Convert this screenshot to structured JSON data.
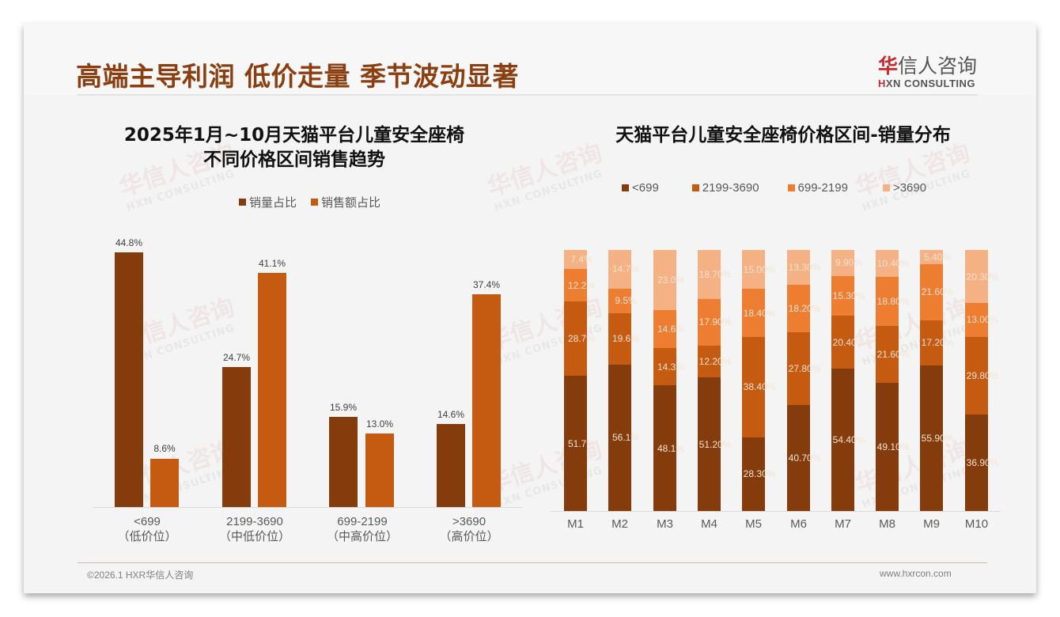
{
  "header": {
    "title": "高端主导利润 低价走量 季节波动显著",
    "logo_cn_first": "华",
    "logo_cn_rest": "信人咨询",
    "logo_en_first": "H",
    "logo_en_rest": "XN CONSULTING"
  },
  "left_chart": {
    "title_line1": "2025年1月~10月天猫平台儿童安全座椅",
    "title_line2": "不同价格区间销售趋势",
    "legend": [
      {
        "label": "销量占比",
        "color": "#843c0c"
      },
      {
        "label": "销售额占比",
        "color": "#c55a11"
      }
    ],
    "groups": [
      {
        "label": "<699",
        "sub": "（低价位）",
        "volume": "44.8%",
        "sales": "8.6%"
      },
      {
        "label": "2199-3690",
        "sub": "（中低价位）",
        "volume": "24.7%",
        "sales": "41.1%"
      },
      {
        "label": "699-2199",
        "sub": "（中高价位）",
        "volume": "15.9%",
        "sales": "13.0%"
      },
      {
        "label": ">3690",
        "sub": "（高价位）",
        "volume": "14.6%",
        "sales": "37.4%"
      }
    ]
  },
  "right_chart": {
    "title": "天猫平台儿童安全座椅价格区间-销量分布",
    "legend": [
      {
        "label": "<699",
        "color": "#843c0c"
      },
      {
        "label": "2199-3690",
        "color": "#c55a11"
      },
      {
        "label": "699-2199",
        "color": "#ed7d31"
      },
      {
        "label": ">3690",
        "color": "#f4b183"
      }
    ],
    "months": [
      {
        "label": "M1",
        "vals": [
          "51.7%",
          "28.7%",
          "12.2%",
          "7.4%"
        ]
      },
      {
        "label": "M2",
        "vals": [
          "56.1%",
          "19.6%",
          "9.5%",
          "14.7%"
        ]
      },
      {
        "label": "M3",
        "vals": [
          "48.1%",
          "14.3%",
          "14.6%",
          "23.0%"
        ]
      },
      {
        "label": "M4",
        "vals": [
          "51.20%",
          "12.20%",
          "17.90%",
          "18.70%"
        ]
      },
      {
        "label": "M5",
        "vals": [
          "28.30%",
          "38.40%",
          "18.40%",
          "15.00%"
        ]
      },
      {
        "label": "M6",
        "vals": [
          "40.70%",
          "27.80%",
          "18.20%",
          "13.30%"
        ]
      },
      {
        "label": "M7",
        "vals": [
          "54.40%",
          "20.40%",
          "15.30%",
          "9.90%"
        ]
      },
      {
        "label": "M8",
        "vals": [
          "49.10%",
          "21.60%",
          "18.80%",
          "10.40%"
        ]
      },
      {
        "label": "M9",
        "vals": [
          "55.90%",
          "17.20%",
          "21.60%",
          "5.40%"
        ]
      },
      {
        "label": "M10",
        "vals": [
          "36.90%",
          "29.80%",
          "13.00%",
          "20.30%"
        ]
      }
    ]
  },
  "footer": {
    "left": "©2026.1 HXR华信人咨询",
    "right": "www.hxrcon.com"
  },
  "chart_data": [
    {
      "type": "bar",
      "title": "2025年1月~10月天猫平台儿童安全座椅不同价格区间销售趋势",
      "categories": [
        "<699（低价位）",
        "2199-3690（中低价位）",
        "699-2199（中高价位）",
        ">3690（高价位）"
      ],
      "series": [
        {
          "name": "销量占比",
          "values": [
            44.8,
            24.7,
            15.9,
            14.6
          ]
        },
        {
          "name": "销售额占比",
          "values": [
            8.6,
            41.1,
            13.0,
            37.4
          ]
        }
      ],
      "xlabel": "",
      "ylabel": "",
      "unit": "%",
      "ylim": [
        0,
        50
      ],
      "legend_position": "top",
      "grid": false
    },
    {
      "type": "bar",
      "stacked": true,
      "percent": true,
      "title": "天猫平台儿童安全座椅价格区间-销量分布",
      "categories": [
        "M1",
        "M2",
        "M3",
        "M4",
        "M5",
        "M6",
        "M7",
        "M8",
        "M9",
        "M10"
      ],
      "series": [
        {
          "name": "<699",
          "values": [
            51.7,
            56.1,
            48.1,
            51.2,
            28.3,
            40.7,
            54.4,
            49.1,
            55.9,
            36.9
          ]
        },
        {
          "name": "2199-3690",
          "values": [
            28.7,
            19.6,
            14.3,
            12.2,
            38.4,
            27.8,
            20.4,
            21.6,
            17.2,
            29.8
          ]
        },
        {
          "name": "699-2199",
          "values": [
            12.2,
            9.5,
            14.6,
            17.9,
            18.4,
            18.2,
            15.3,
            18.8,
            21.6,
            13.0
          ]
        },
        {
          "name": ">3690",
          "values": [
            7.4,
            14.7,
            23.0,
            18.7,
            15.0,
            13.3,
            9.9,
            10.4,
            5.4,
            20.3
          ]
        }
      ],
      "xlabel": "",
      "ylabel": "",
      "unit": "%",
      "ylim": [
        0,
        100
      ],
      "legend_position": "top",
      "grid": false
    }
  ]
}
